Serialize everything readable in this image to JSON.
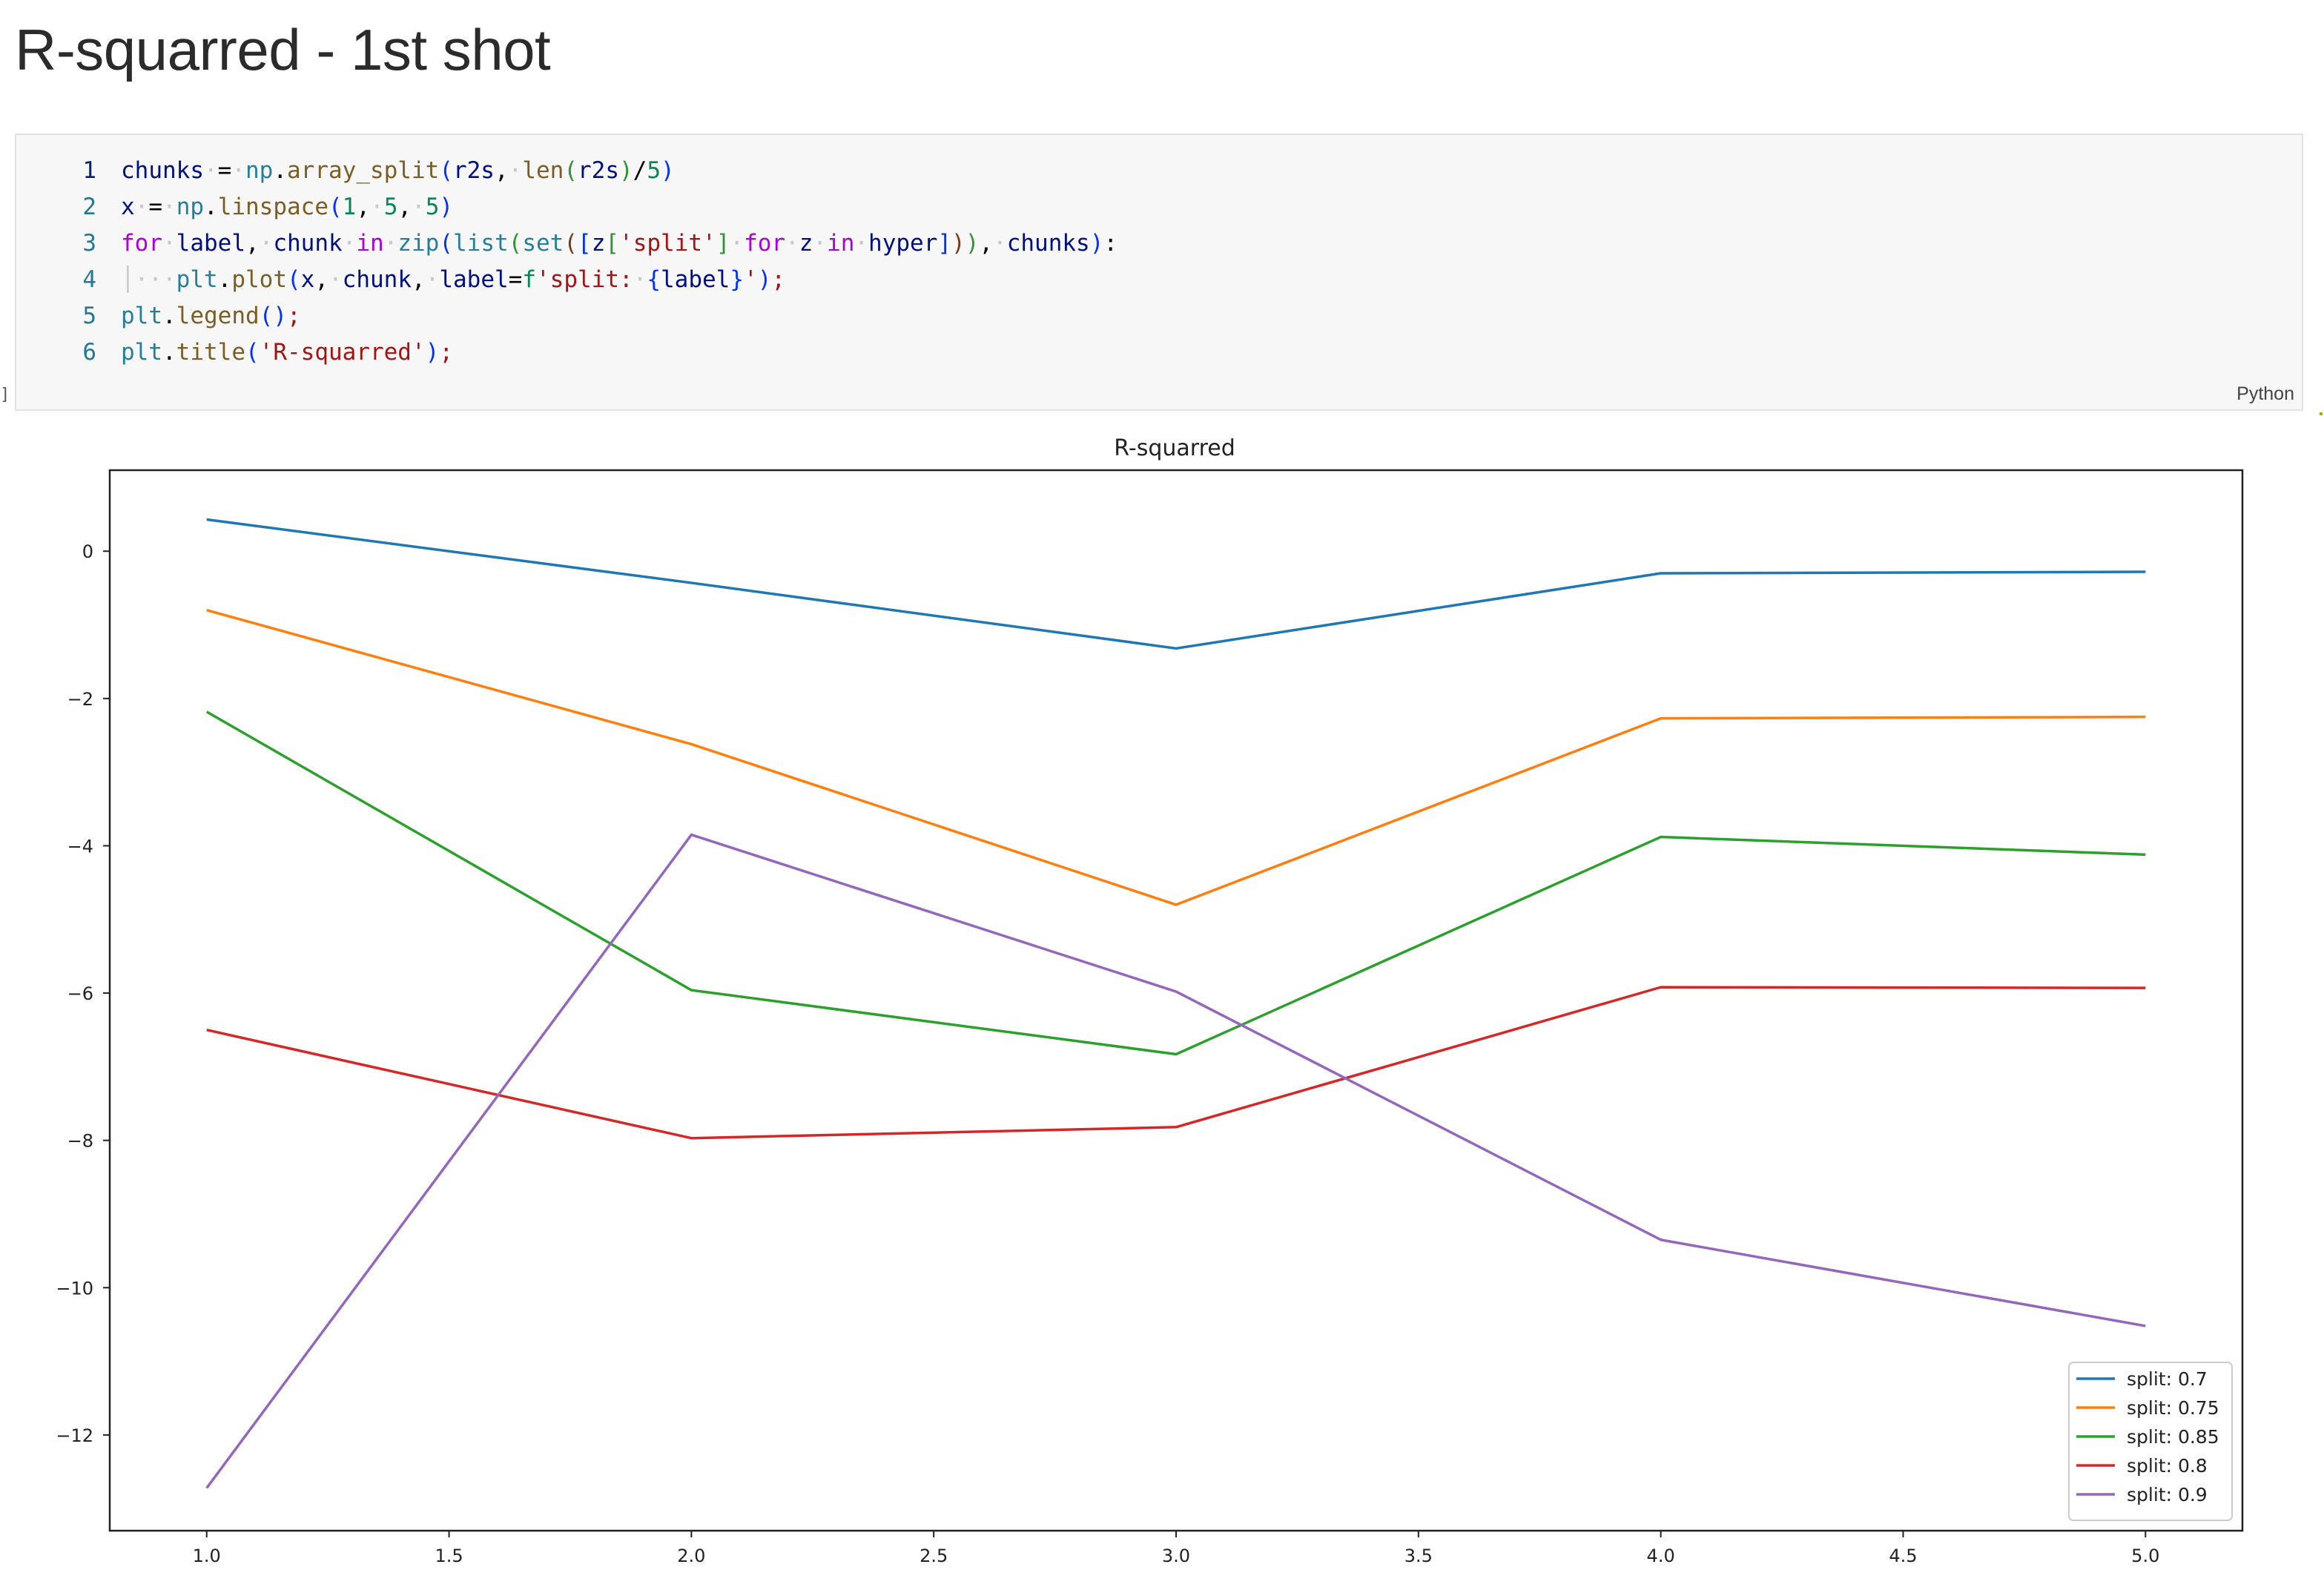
{
  "page": {
    "heading": "R-squarred - 1st shot"
  },
  "cell": {
    "language": "Python",
    "gutter_mark": "]",
    "lines": [
      {
        "n": "1",
        "tokens": [
          [
            "k-var",
            "chunks"
          ],
          [
            "ws",
            "·"
          ],
          [
            "k-op",
            "="
          ],
          [
            "ws",
            "·"
          ],
          [
            "k-mod",
            "np"
          ],
          [
            "k-op",
            "."
          ],
          [
            "k-fn",
            "array_split"
          ],
          [
            "k-br1",
            "("
          ],
          [
            "k-var",
            "r2s"
          ],
          [
            "k-op",
            ","
          ],
          [
            "ws",
            "·"
          ],
          [
            "k-fn",
            "len"
          ],
          [
            "k-br2",
            "("
          ],
          [
            "k-var",
            "r2s"
          ],
          [
            "k-br2",
            ")"
          ],
          [
            "k-op",
            "/"
          ],
          [
            "k-num",
            "5"
          ],
          [
            "k-br1",
            ")"
          ]
        ]
      },
      {
        "n": "2",
        "tokens": [
          [
            "k-var",
            "x"
          ],
          [
            "ws",
            "·"
          ],
          [
            "k-op",
            "="
          ],
          [
            "ws",
            "·"
          ],
          [
            "k-mod",
            "np"
          ],
          [
            "k-op",
            "."
          ],
          [
            "k-fn",
            "linspace"
          ],
          [
            "k-br1",
            "("
          ],
          [
            "k-num",
            "1"
          ],
          [
            "k-op",
            ","
          ],
          [
            "ws",
            "·"
          ],
          [
            "k-num",
            "5"
          ],
          [
            "k-op",
            ","
          ],
          [
            "ws",
            "·"
          ],
          [
            "k-num",
            "5"
          ],
          [
            "k-br1",
            ")"
          ]
        ]
      },
      {
        "n": "3",
        "tokens": [
          [
            "k-kw",
            "for"
          ],
          [
            "ws",
            "·"
          ],
          [
            "k-var",
            "label"
          ],
          [
            "k-op",
            ","
          ],
          [
            "ws",
            "·"
          ],
          [
            "k-var",
            "chunk"
          ],
          [
            "ws",
            "·"
          ],
          [
            "k-kw",
            "in"
          ],
          [
            "ws",
            "·"
          ],
          [
            "k-mod",
            "zip"
          ],
          [
            "k-br1",
            "("
          ],
          [
            "k-mod",
            "list"
          ],
          [
            "k-br2",
            "("
          ],
          [
            "k-mod",
            "set"
          ],
          [
            "k-br3",
            "("
          ],
          [
            "k-br1",
            "["
          ],
          [
            "k-var",
            "z"
          ],
          [
            "k-br2",
            "["
          ],
          [
            "k-str",
            "'split'"
          ],
          [
            "k-br2",
            "]"
          ],
          [
            "ws",
            "·"
          ],
          [
            "k-kw",
            "for"
          ],
          [
            "ws",
            "·"
          ],
          [
            "k-var",
            "z"
          ],
          [
            "ws",
            "·"
          ],
          [
            "k-kw",
            "in"
          ],
          [
            "ws",
            "·"
          ],
          [
            "k-var",
            "hyper"
          ],
          [
            "k-br1",
            "]"
          ],
          [
            "k-br3",
            ")"
          ],
          [
            "k-br2",
            ")"
          ],
          [
            "k-op",
            ","
          ],
          [
            "ws",
            "·"
          ],
          [
            "k-var",
            "chunks"
          ],
          [
            "k-br1",
            ")"
          ],
          [
            "k-op",
            ":"
          ]
        ]
      },
      {
        "n": "4",
        "tokens": [
          [
            "ws",
            "│···"
          ],
          [
            "k-mod",
            "plt"
          ],
          [
            "k-op",
            "."
          ],
          [
            "k-fn",
            "plot"
          ],
          [
            "k-br1",
            "("
          ],
          [
            "k-var",
            "x"
          ],
          [
            "k-op",
            ","
          ],
          [
            "ws",
            "·"
          ],
          [
            "k-var",
            "chunk"
          ],
          [
            "k-op",
            ","
          ],
          [
            "ws",
            "·"
          ],
          [
            "k-var",
            "label"
          ],
          [
            "k-op",
            "="
          ],
          [
            "k-num",
            "f"
          ],
          [
            "k-str",
            "'split:"
          ],
          [
            "ws",
            "·"
          ],
          [
            "k-br1",
            "{"
          ],
          [
            "k-var",
            "label"
          ],
          [
            "k-br1",
            "}"
          ],
          [
            "k-str",
            "'"
          ],
          [
            "k-br1",
            ")"
          ],
          [
            "k-str",
            ";"
          ]
        ]
      },
      {
        "n": "5",
        "tokens": [
          [
            "k-mod",
            "plt"
          ],
          [
            "k-op",
            "."
          ],
          [
            "k-fn",
            "legend"
          ],
          [
            "k-br1",
            "()"
          ],
          [
            "k-str",
            ";"
          ]
        ]
      },
      {
        "n": "6",
        "tokens": [
          [
            "k-mod",
            "plt"
          ],
          [
            "k-op",
            "."
          ],
          [
            "k-fn",
            "title"
          ],
          [
            "k-br1",
            "("
          ],
          [
            "k-str",
            "'R-squarred'"
          ],
          [
            "k-br1",
            ")"
          ],
          [
            "k-str",
            ";"
          ]
        ]
      }
    ]
  },
  "chart_data": {
    "type": "line",
    "title": "R-squarred",
    "xlabel": "",
    "ylabel": "",
    "x": [
      1.0,
      2.0,
      3.0,
      4.0,
      5.0
    ],
    "xlim": [
      0.8,
      5.2
    ],
    "ylim": [
      -13.3,
      1.1
    ],
    "xticks": [
      1.0,
      1.5,
      2.0,
      2.5,
      3.0,
      3.5,
      4.0,
      4.5,
      5.0
    ],
    "xtick_labels": [
      "1.0",
      "1.5",
      "2.0",
      "2.5",
      "3.0",
      "3.5",
      "4.0",
      "4.5",
      "5.0"
    ],
    "yticks": [
      0,
      -2,
      -4,
      -6,
      -8,
      -10,
      -12
    ],
    "ytick_labels": [
      "0",
      "−2",
      "−4",
      "−6",
      "−8",
      "−10",
      "−12"
    ],
    "grid": false,
    "legend_position": "lower right",
    "series": [
      {
        "name": "split: 0.7",
        "color": "#1f77b4",
        "values": [
          0.43,
          -0.43,
          -1.32,
          -0.3,
          -0.28
        ]
      },
      {
        "name": "split: 0.75",
        "color": "#ff7f0e",
        "values": [
          -0.8,
          -2.62,
          -4.8,
          -2.27,
          -2.25
        ]
      },
      {
        "name": "split: 0.85",
        "color": "#2ca02c",
        "values": [
          -2.18,
          -5.96,
          -6.83,
          -3.88,
          -4.12
        ]
      },
      {
        "name": "split: 0.8",
        "color": "#d62728",
        "values": [
          -6.5,
          -7.97,
          -7.82,
          -5.92,
          -5.93
        ]
      },
      {
        "name": "split: 0.9",
        "color": "#9467bd",
        "values": [
          -12.72,
          -3.85,
          -5.98,
          -9.35,
          -10.52
        ]
      }
    ]
  }
}
